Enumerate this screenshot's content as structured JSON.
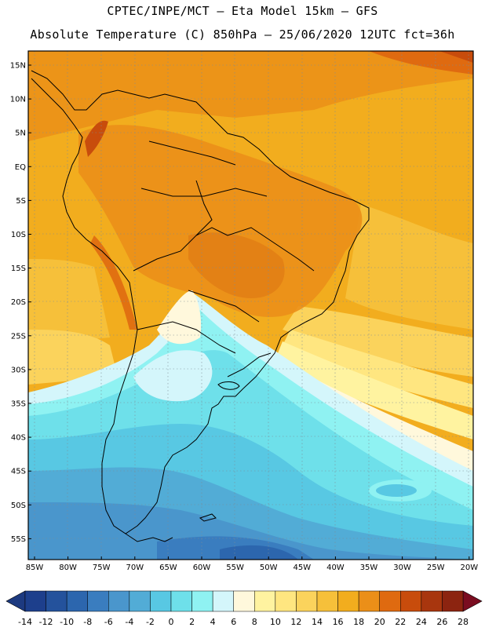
{
  "header": {
    "line1": "CPTEC/INPE/MCT –  Eta Model 15km – GFS",
    "line2": "Absolute Temperature (C) 850hPa – 25/06/2020 12UTC fct=36h"
  },
  "lat_labels": [
    "15N",
    "10N",
    "5N",
    "EQ",
    "5S",
    "10S",
    "15S",
    "20S",
    "25S",
    "30S",
    "35S",
    "40S",
    "45S",
    "50S",
    "55S"
  ],
  "lon_labels": [
    "85W",
    "80W",
    "75W",
    "70W",
    "65W",
    "60W",
    "55W",
    "50W",
    "45W",
    "40W",
    "35W",
    "30W",
    "25W",
    "20W"
  ],
  "colorbar": {
    "labels": [
      "-14",
      "-12",
      "-10",
      "-8",
      "-6",
      "-4",
      "-2",
      "0",
      "2",
      "4",
      "6",
      "8",
      "10",
      "12",
      "14",
      "16",
      "18",
      "20",
      "22",
      "24",
      "26",
      "28"
    ],
    "colors": [
      "#1d3f8c",
      "#24529c",
      "#2c66ae",
      "#3a7dbf",
      "#4a96cc",
      "#52acd6",
      "#58c8e3",
      "#6ee0ea",
      "#8ff2f2",
      "#d4f6fb",
      "#fff8dc",
      "#fff3a0",
      "#ffe680",
      "#fbd35c",
      "#f6c03a",
      "#f2ad1e",
      "#eb8f18",
      "#df6a10",
      "#c84c0c",
      "#a8360e",
      "#8c2410"
    ],
    "min_color": "#1d3a80",
    "max_color": "#7a0c20"
  }
}
